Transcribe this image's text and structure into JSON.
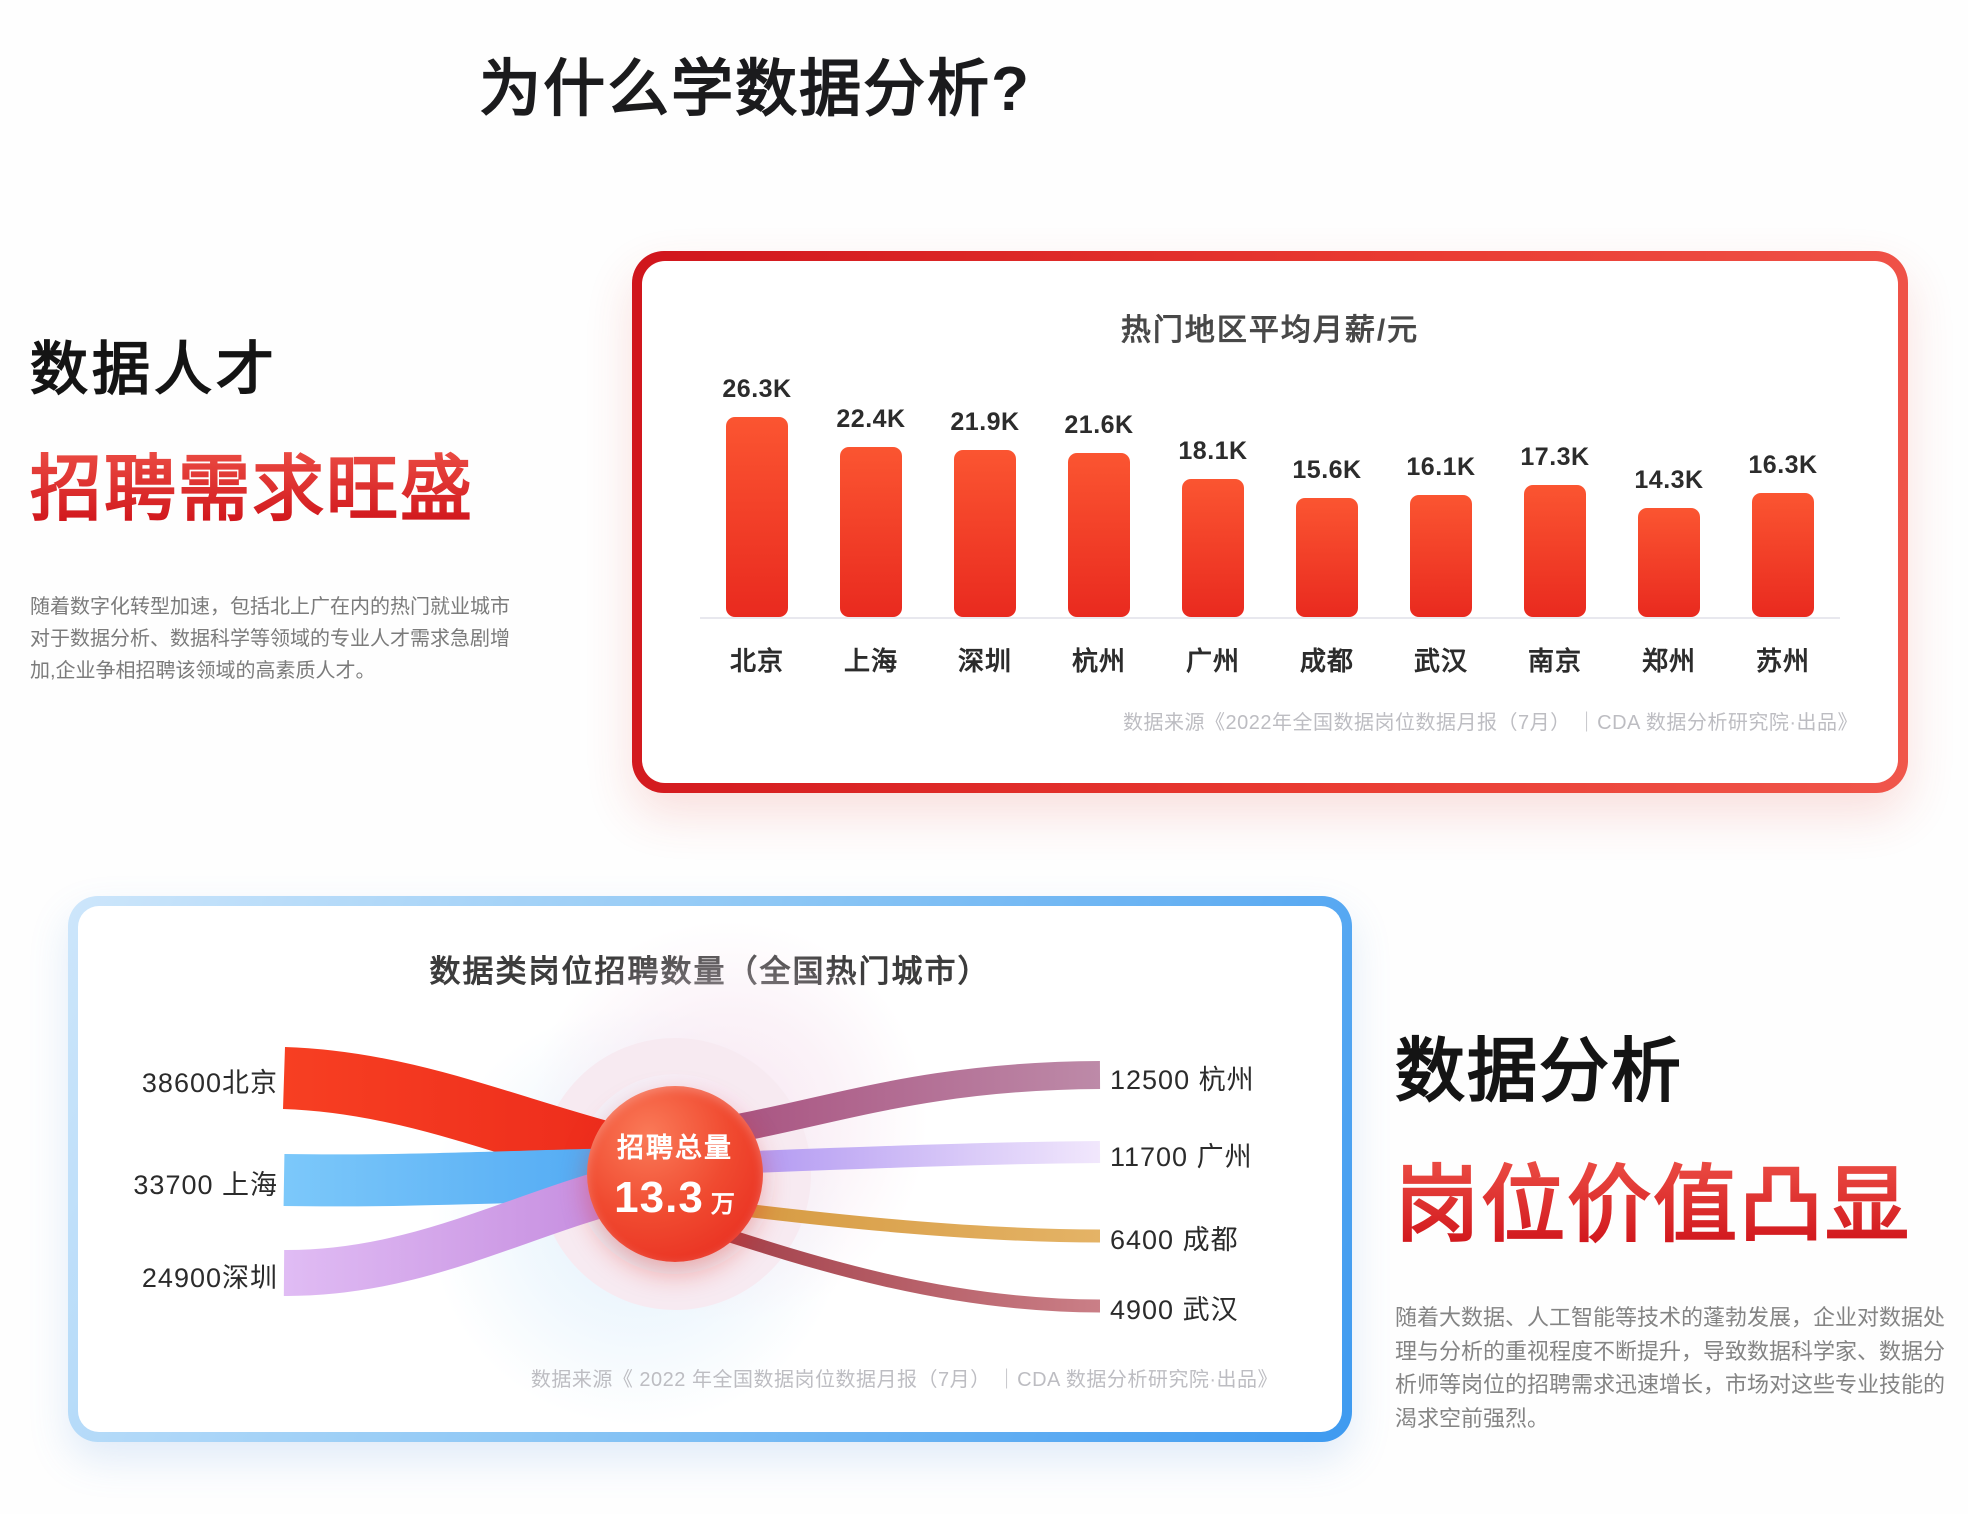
{
  "page": {
    "title": "为什么学数据分析?"
  },
  "colors": {
    "accent_red": "#e0201d",
    "card_red_border": "#d0151c",
    "card_blue_border": "#3e9af0",
    "bar_gradient_top": "#fb5531",
    "bar_gradient_bottom": "#e92a1f",
    "total_circle": "#ee3322"
  },
  "intro_block": {
    "heading": "数据人才",
    "heading_accent": "招聘需求旺盛",
    "paragraph": "随着数字化转型加速，包括北上广在内的热门就业城市对于数据分析、数据科学等领域的专业人才需求急剧增加,企业争相招聘该领域的高素质人才。"
  },
  "value_block": {
    "heading": "数据分析",
    "heading_accent": "岗位价值凸显",
    "paragraph": "随着大数据、人工智能等技术的蓬勃发展，企业对数据处理与分析的重视程度不断提升，导致数据科学家、数据分析师等岗位的招聘需求迅速增长，市场对这些专业技能的渴求空前强烈。"
  },
  "chart_data": [
    {
      "type": "bar",
      "title": "热门地区平均月薪/元",
      "categories": [
        "北京",
        "上海",
        "深圳",
        "杭州",
        "广州",
        "成都",
        "武汉",
        "南京",
        "郑州",
        "苏州"
      ],
      "values": [
        26.3,
        22.4,
        21.9,
        21.6,
        18.1,
        15.6,
        16.1,
        17.3,
        14.3,
        16.3
      ],
      "value_labels": [
        "26.3K",
        "22.4K",
        "21.9K",
        "21.6K",
        "18.1K",
        "15.6K",
        "16.1K",
        "17.3K",
        "14.3K",
        "16.3K"
      ],
      "unit": "K",
      "ylim": [
        0,
        26.3
      ],
      "grid": false,
      "legend": "none",
      "source": "数据来源《2022年全国数据岗位数据月报（7月） ｜CDA 数据分析研究院·出品》"
    },
    {
      "type": "sankey",
      "title": "数据类岗位招聘数量（全国热门城市）",
      "center": {
        "label": "招聘总量",
        "value": "13.3",
        "unit": "万"
      },
      "total": "13.3万",
      "inflows": [
        {
          "city": "北京",
          "value": 38600,
          "label": "38600北京",
          "color": "#f73f22"
        },
        {
          "city": "上海",
          "value": 33700,
          "label": "33700 上海",
          "color": "#5fb5f6"
        },
        {
          "city": "深圳",
          "value": 24900,
          "label": "24900深圳",
          "color": "#cf9fe6"
        }
      ],
      "outflows": [
        {
          "city": "杭州",
          "value": 12500,
          "label": "12500 杭州",
          "color": "#ad5381"
        },
        {
          "city": "广州",
          "value": 11700,
          "label": "11700 广州",
          "color": "#c9b2f1"
        },
        {
          "city": "成都",
          "value": 6400,
          "label": "6400 成都",
          "color": "#dda153"
        },
        {
          "city": "武汉",
          "value": 4900,
          "label": "4900 武汉",
          "color": "#b25a62"
        }
      ],
      "source": "数据来源《 2022 年全国数据岗位数据月报（7月） ｜CDA 数据分析研究院·出品》"
    }
  ]
}
